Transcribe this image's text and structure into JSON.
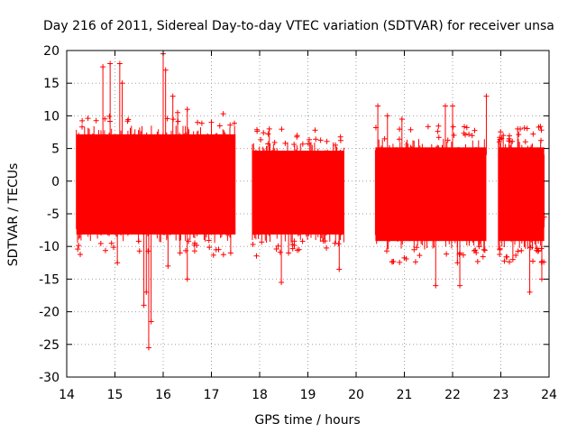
{
  "chart_data": {
    "type": "scatter",
    "title": "Day 216 of 2011, Sidereal Day-to-day VTEC variation (SDTVAR) for receiver unsa",
    "xlabel": "GPS time / hours",
    "ylabel": "SDTVAR / TECUs",
    "xlim": [
      14,
      24
    ],
    "ylim": [
      -30,
      20
    ],
    "xticks": [
      14,
      15,
      16,
      17,
      18,
      19,
      20,
      21,
      22,
      23,
      24
    ],
    "yticks": [
      20,
      15,
      10,
      5,
      0,
      -5,
      -10,
      -15,
      -20,
      -25,
      -30
    ],
    "xtick_labels": [
      "14",
      "15",
      "16",
      "17",
      "18",
      "19",
      "20",
      "21",
      "22",
      "23",
      "24"
    ],
    "ytick_labels": [
      "20",
      "15",
      "10",
      "5",
      "0",
      "-5",
      "-10",
      "-15",
      "-20",
      "-25",
      "-30"
    ],
    "grid": true,
    "grid_style": "dotted",
    "series_color": "#ff0000",
    "marker": "plus with error bars",
    "segments": [
      {
        "x_start": 14.2,
        "x_end": 17.5,
        "y_low": -9,
        "y_high": 8
      },
      {
        "x_start": 17.85,
        "x_end": 19.75,
        "y_low": -9,
        "y_high": 5.5
      },
      {
        "x_start": 20.4,
        "x_end": 22.7,
        "y_low": -10,
        "y_high": 6
      },
      {
        "x_start": 22.95,
        "x_end": 23.9,
        "y_low": -10,
        "y_high": 6
      }
    ],
    "outliers": [
      {
        "x": 14.75,
        "y": 17.5
      },
      {
        "x": 14.9,
        "y": 18
      },
      {
        "x": 15.1,
        "y": 18
      },
      {
        "x": 15.15,
        "y": 15
      },
      {
        "x": 16.0,
        "y": 19.5
      },
      {
        "x": 16.05,
        "y": 17
      },
      {
        "x": 16.2,
        "y": 13
      },
      {
        "x": 16.5,
        "y": 11
      },
      {
        "x": 16.3,
        "y": 10.5
      },
      {
        "x": 17.0,
        "y": 9
      },
      {
        "x": 15.7,
        "y": -25.5
      },
      {
        "x": 15.75,
        "y": -21.5
      },
      {
        "x": 15.6,
        "y": -19
      },
      {
        "x": 15.65,
        "y": -17
      },
      {
        "x": 15.05,
        "y": -12.5
      },
      {
        "x": 16.5,
        "y": -15
      },
      {
        "x": 16.1,
        "y": -13
      },
      {
        "x": 16.35,
        "y": -11
      },
      {
        "x": 17.4,
        "y": -11
      },
      {
        "x": 18.45,
        "y": -15.5
      },
      {
        "x": 18.6,
        "y": -11
      },
      {
        "x": 18.2,
        "y": 8
      },
      {
        "x": 19.65,
        "y": -13.5
      },
      {
        "x": 19.7,
        "y": 2.5
      },
      {
        "x": 20.45,
        "y": 11.5
      },
      {
        "x": 20.65,
        "y": 10
      },
      {
        "x": 20.95,
        "y": 9.5
      },
      {
        "x": 21.65,
        "y": -16
      },
      {
        "x": 21.85,
        "y": 11.5
      },
      {
        "x": 22.0,
        "y": 11.5
      },
      {
        "x": 22.15,
        "y": -16
      },
      {
        "x": 22.1,
        "y": -12.5
      },
      {
        "x": 22.35,
        "y": -9
      },
      {
        "x": 22.5,
        "y": -8.5
      },
      {
        "x": 22.55,
        "y": -10
      },
      {
        "x": 22.7,
        "y": 13
      },
      {
        "x": 22.65,
        "y": -10.5
      },
      {
        "x": 23.05,
        "y": 7
      },
      {
        "x": 23.2,
        "y": 5
      },
      {
        "x": 23.35,
        "y": 8
      },
      {
        "x": 23.45,
        "y": -8
      },
      {
        "x": 23.6,
        "y": -17
      },
      {
        "x": 23.75,
        "y": 3
      },
      {
        "x": 23.85,
        "y": -15
      },
      {
        "x": 23.9,
        "y": -5.5
      },
      {
        "x": 23.7,
        "y": 2.5
      },
      {
        "x": 23.25,
        "y": -12
      }
    ]
  }
}
